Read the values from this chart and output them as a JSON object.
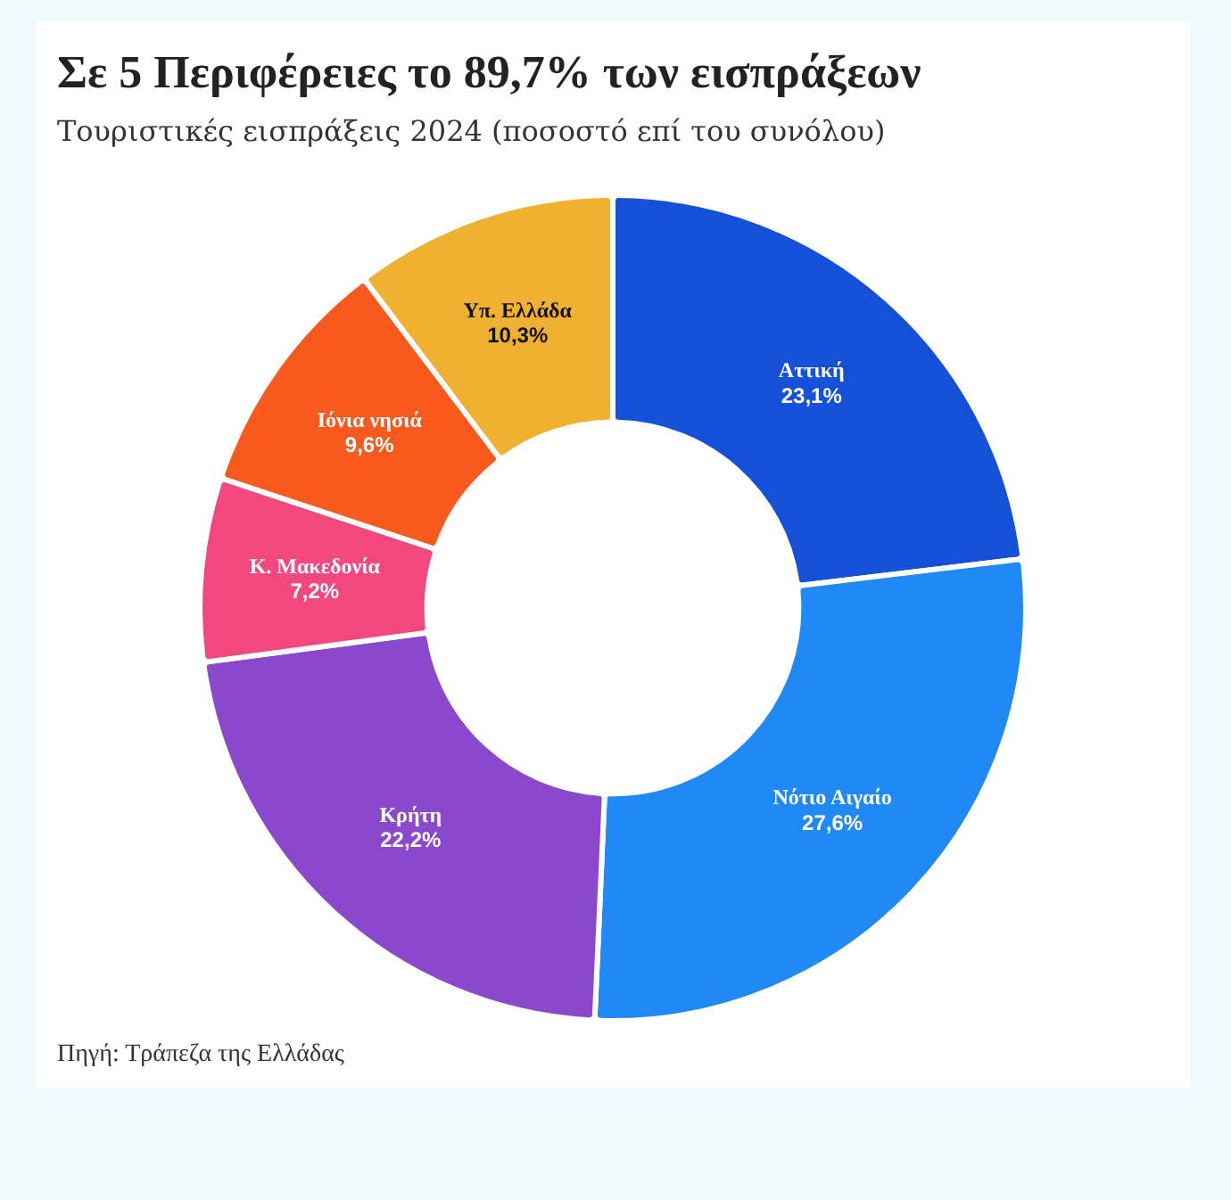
{
  "chart_data": {
    "type": "donut",
    "title": "Σε 5 Περιφέρειες το 89,7% των εισπράξεων",
    "subtitle": "Τουριστικές εισπράξεις 2024 (ποσοστό επί του συνόλου)",
    "categories": [
      "Αττική",
      "Νότιο Αιγαίο",
      "Κρήτη",
      "Κ. Μακεδονία",
      "Ιόνια νησιά",
      "Υπ. Ελλάδα"
    ],
    "values": [
      23.1,
      27.6,
      22.2,
      7.2,
      9.6,
      10.3
    ],
    "value_labels": [
      "23,1%",
      "27,6%",
      "22,2%",
      "7,2%",
      "9,6%",
      "10,3%"
    ],
    "colors": [
      "#1550d8",
      "#2089f6",
      "#8a48cc",
      "#f2477f",
      "#f85a1e",
      "#f0b030"
    ],
    "legend": false,
    "annotations": [
      "Πηγή: Τράπεζα της Ελλάδας"
    ]
  }
}
